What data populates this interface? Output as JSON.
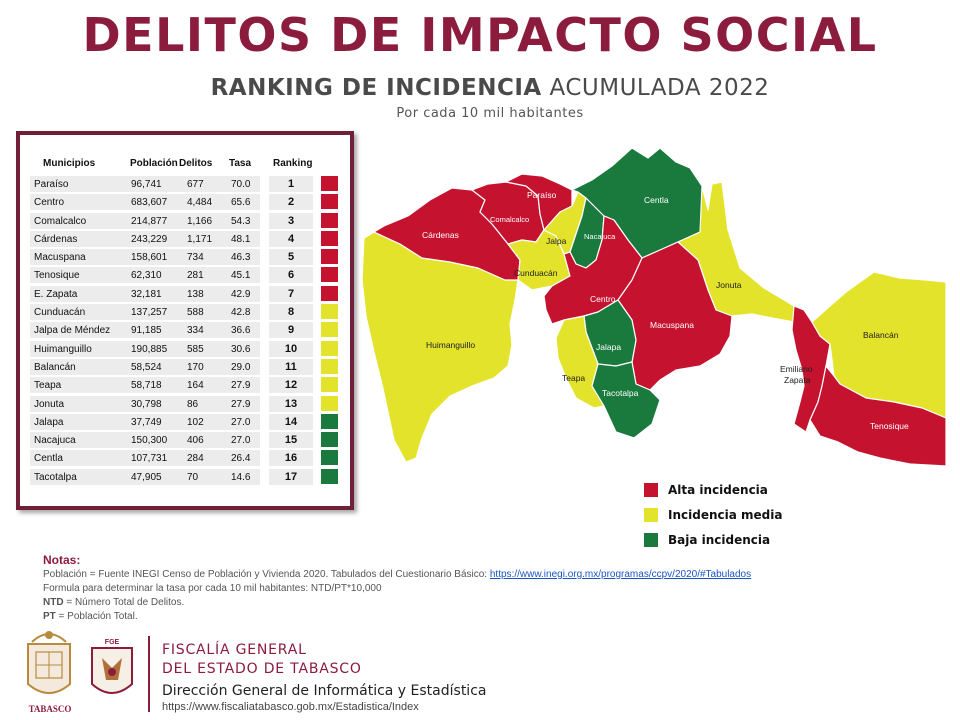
{
  "header": {
    "title": "DELITOS DE IMPACTO SOCIAL",
    "subtitle_bold": "RANKING DE INCIDENCIA",
    "subtitle_rest": " ACUMULADA 2022",
    "subtitle_note": "Por cada 10 mil habitantes"
  },
  "table": {
    "columns": [
      "Municipios",
      "Población",
      "Delitos",
      "Tasa",
      "Ranking"
    ],
    "rows": [
      {
        "municipio": "Paraíso",
        "poblacion": "96,741",
        "delitos": "677",
        "tasa": "70.0",
        "ranking": "1",
        "level": "alta"
      },
      {
        "municipio": "Centro",
        "poblacion": "683,607",
        "delitos": "4,484",
        "tasa": "65.6",
        "ranking": "2",
        "level": "alta"
      },
      {
        "municipio": "Comalcalco",
        "poblacion": "214,877",
        "delitos": "1,166",
        "tasa": "54.3",
        "ranking": "3",
        "level": "alta"
      },
      {
        "municipio": "Cárdenas",
        "poblacion": "243,229",
        "delitos": "1,171",
        "tasa": "48.1",
        "ranking": "4",
        "level": "alta"
      },
      {
        "municipio": "Macuspana",
        "poblacion": "158,601",
        "delitos": "734",
        "tasa": "46.3",
        "ranking": "5",
        "level": "alta"
      },
      {
        "municipio": "Tenosique",
        "poblacion": "62,310",
        "delitos": "281",
        "tasa": "45.1",
        "ranking": "6",
        "level": "alta"
      },
      {
        "municipio": "E. Zapata",
        "poblacion": "32,181",
        "delitos": "138",
        "tasa": "42.9",
        "ranking": "7",
        "level": "alta"
      },
      {
        "municipio": "Cunduacán",
        "poblacion": "137,257",
        "delitos": "588",
        "tasa": "42.8",
        "ranking": "8",
        "level": "media"
      },
      {
        "municipio": "Jalpa de Méndez",
        "poblacion": "91,185",
        "delitos": "334",
        "tasa": "36.6",
        "ranking": "9",
        "level": "media"
      },
      {
        "municipio": "Huimanguillo",
        "poblacion": "190,885",
        "delitos": "585",
        "tasa": "30.6",
        "ranking": "10",
        "level": "media"
      },
      {
        "municipio": "Balancán",
        "poblacion": "58,524",
        "delitos": "170",
        "tasa": "29.0",
        "ranking": "11",
        "level": "media"
      },
      {
        "municipio": "Teapa",
        "poblacion": "58,718",
        "delitos": "164",
        "tasa": "27.9",
        "ranking": "12",
        "level": "media"
      },
      {
        "municipio": "Jonuta",
        "poblacion": "30,798",
        "delitos": "86",
        "tasa": "27.9",
        "ranking": "13",
        "level": "media"
      },
      {
        "municipio": "Jalapa",
        "poblacion": "37,749",
        "delitos": "102",
        "tasa": "27.0",
        "ranking": "14",
        "level": "baja"
      },
      {
        "municipio": "Nacajuca",
        "poblacion": "150,300",
        "delitos": "406",
        "tasa": "27.0",
        "ranking": "15",
        "level": "baja"
      },
      {
        "municipio": "Centla",
        "poblacion": "107,731",
        "delitos": "284",
        "tasa": "26.4",
        "ranking": "16",
        "level": "baja"
      },
      {
        "municipio": "Tacotalpa",
        "poblacion": "47,905",
        "delitos": "70",
        "tasa": "14.6",
        "ranking": "17",
        "level": "baja"
      }
    ]
  },
  "colors": {
    "alta": "#c4122f",
    "media": "#e3e32b",
    "baja": "#1a7a3e",
    "brand": "#8c1c3e"
  },
  "map": {
    "labels": {
      "cardenas": "Cárdenas",
      "paraiso": "Paraíso",
      "comalcalco": "Comalcalco",
      "jalpa_norte": "Jalpa",
      "nacajuca": "Nacajuca",
      "centla": "Centla",
      "cunduacan": "Cunduacán",
      "jonuta": "Jonuta",
      "centro": "Centro",
      "macuspana": "Macuspana",
      "huimanguillo": "Huimanguillo",
      "jalapa": "Jalapa",
      "teapa": "Teapa",
      "tacotalpa": "Tacotalpa",
      "emiliano_zapata_1": "Emiliano",
      "emiliano_zapata_2": "Zapata",
      "balancan": "Balancán",
      "tenosique": "Tenosique"
    }
  },
  "legend": [
    {
      "label": "Alta incidencia",
      "level": "alta"
    },
    {
      "label": "Incidencia media",
      "level": "media"
    },
    {
      "label": "Baja incidencia",
      "level": "baja"
    }
  ],
  "notes": {
    "title": "Notas:",
    "line1_text": "Población = Fuente INEGI Censo de Población y Vivienda 2020. Tabulados del Cuestionario Básico: ",
    "line1_link": "https://www.inegi.org.mx/programas/ccpv/2020/#Tabulados",
    "line2": "Formula para determinar la tasa por cada 10 mil habitantes: NTD/PT*10,000",
    "line3_bold": "NTD",
    "line3_rest": " = Número Total de Delitos.",
    "line4_bold": "PT",
    "line4_rest": " = Población Total."
  },
  "footer": {
    "seal_caption": "TABASCO",
    "logo2_caption": "FGE",
    "org_line1": "FISCALÍA GENERAL",
    "org_line2": "DEL ESTADO DE TABASCO",
    "department": "Dirección General de Informática y Estadística",
    "url": "https://www.fiscaliatabasco.gob.mx/Estadistica/Index"
  }
}
